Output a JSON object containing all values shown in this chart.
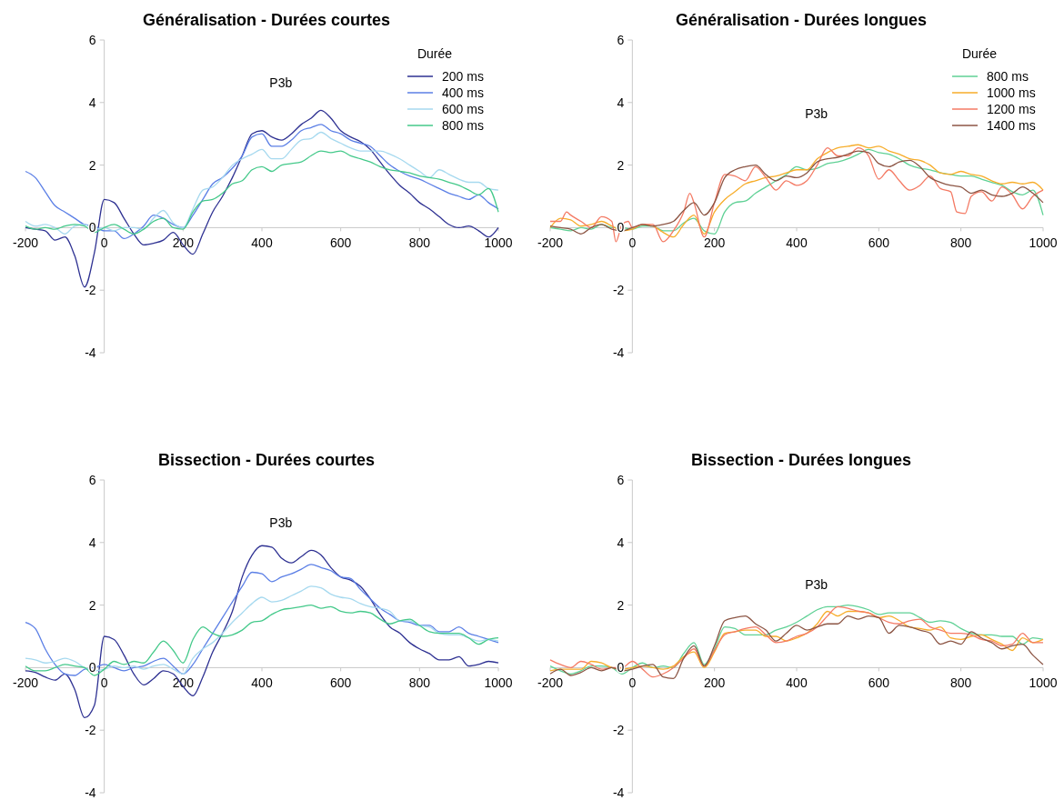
{
  "chart_data": [
    {
      "type": "line",
      "title": "Généralisation - Durées courtes",
      "legend_title": "Durée",
      "legend": "top right",
      "grid": false,
      "xlim": [
        -200,
        1000
      ],
      "ylim": [
        -4,
        6
      ],
      "xticks": [
        -200,
        0,
        200,
        400,
        600,
        800,
        1000
      ],
      "yticks": [
        -4,
        -2,
        0,
        2,
        4,
        6
      ],
      "annotations": [
        "P3b"
      ],
      "x": [
        -200,
        -175,
        -150,
        -125,
        -100,
        -75,
        -50,
        -25,
        0,
        25,
        50,
        75,
        100,
        125,
        150,
        175,
        200,
        225,
        250,
        275,
        300,
        325,
        350,
        375,
        400,
        425,
        450,
        475,
        500,
        525,
        550,
        575,
        600,
        625,
        650,
        675,
        700,
        725,
        750,
        775,
        800,
        825,
        850,
        875,
        900,
        925,
        950,
        975,
        1000
      ],
      "series": [
        {
          "name": "200 ms",
          "color": "#2e3192",
          "values": [
            0.0,
            -0.05,
            -0.1,
            -0.4,
            -0.3,
            -0.9,
            -1.9,
            -0.8,
            0.9,
            0.8,
            0.3,
            -0.2,
            -0.55,
            -0.5,
            -0.4,
            -0.15,
            -0.55,
            -0.85,
            -0.2,
            0.5,
            1.0,
            1.6,
            2.3,
            3.0,
            3.1,
            2.9,
            2.8,
            3.0,
            3.3,
            3.5,
            3.75,
            3.5,
            3.1,
            2.9,
            2.75,
            2.5,
            2.1,
            1.7,
            1.35,
            1.1,
            0.8,
            0.6,
            0.35,
            0.1,
            0.0,
            0.05,
            -0.1,
            -0.3,
            0.0
          ]
        },
        {
          "name": "400 ms",
          "color": "#5b7fe6",
          "values": [
            1.8,
            1.6,
            1.15,
            0.7,
            0.5,
            0.3,
            0.1,
            0.05,
            -0.1,
            -0.1,
            -0.35,
            -0.2,
            0.05,
            0.4,
            0.3,
            0.1,
            0.0,
            0.4,
            0.9,
            1.4,
            1.6,
            1.9,
            2.3,
            2.9,
            3.0,
            2.6,
            2.6,
            2.8,
            3.1,
            3.2,
            3.3,
            3.1,
            3.0,
            2.8,
            2.7,
            2.6,
            2.3,
            2.0,
            1.8,
            1.65,
            1.55,
            1.4,
            1.25,
            1.1,
            1.0,
            0.9,
            1.05,
            0.8,
            0.6
          ]
        },
        {
          "name": "600 ms",
          "color": "#a6d9ef",
          "values": [
            0.2,
            0.05,
            0.1,
            0.0,
            -0.2,
            0.05,
            0.1,
            -0.05,
            0.0,
            -0.1,
            0.0,
            0.0,
            -0.05,
            0.3,
            0.55,
            0.15,
            0.0,
            0.6,
            1.2,
            1.3,
            1.6,
            2.0,
            2.2,
            2.35,
            2.5,
            2.2,
            2.2,
            2.5,
            2.8,
            2.85,
            3.05,
            2.85,
            2.7,
            2.55,
            2.45,
            2.45,
            2.45,
            2.35,
            2.2,
            2.0,
            1.8,
            1.6,
            1.85,
            1.7,
            1.55,
            1.45,
            1.45,
            1.25,
            1.2
          ]
        },
        {
          "name": "800 ms",
          "color": "#44c98a",
          "values": [
            0.05,
            -0.05,
            0.0,
            -0.05,
            0.05,
            0.1,
            0.05,
            -0.15,
            0.0,
            0.1,
            -0.05,
            -0.2,
            -0.05,
            0.2,
            0.3,
            0.0,
            -0.05,
            0.5,
            0.85,
            0.9,
            1.1,
            1.4,
            1.5,
            1.85,
            1.95,
            1.8,
            2.0,
            2.05,
            2.1,
            2.3,
            2.45,
            2.4,
            2.45,
            2.3,
            2.2,
            2.1,
            1.95,
            1.85,
            1.8,
            1.75,
            1.65,
            1.6,
            1.55,
            1.45,
            1.35,
            1.2,
            1.05,
            1.25,
            0.5
          ]
        }
      ]
    },
    {
      "type": "line",
      "title": "Généralisation - Durées longues",
      "legend_title": "Durée",
      "legend": "top right",
      "grid": false,
      "xlim": [
        -200,
        1000
      ],
      "ylim": [
        -4,
        6
      ],
      "xticks": [
        -200,
        0,
        200,
        400,
        600,
        800,
        1000
      ],
      "yticks": [
        -4,
        -2,
        0,
        2,
        4,
        6
      ],
      "annotations": [
        "P3b"
      ],
      "x": [
        -200,
        -175,
        -150,
        -125,
        -100,
        -75,
        -50,
        -25,
        0,
        25,
        50,
        75,
        100,
        125,
        150,
        175,
        200,
        225,
        250,
        275,
        300,
        325,
        350,
        375,
        400,
        425,
        450,
        475,
        500,
        525,
        550,
        575,
        600,
        625,
        650,
        675,
        700,
        725,
        750,
        775,
        800,
        825,
        850,
        875,
        900,
        925,
        950,
        975,
        1000
      ],
      "series": [
        {
          "name": "800 ms",
          "color": "#5fd195",
          "values": [
            0.0,
            -0.05,
            -0.1,
            0.0,
            -0.05,
            0.1,
            0.0,
            0.0,
            -0.05,
            0.05,
            0.05,
            -0.1,
            -0.1,
            0.15,
            0.3,
            -0.1,
            -0.2,
            0.5,
            0.8,
            0.85,
            1.1,
            1.3,
            1.5,
            1.7,
            1.95,
            1.85,
            1.9,
            2.05,
            2.1,
            2.2,
            2.35,
            2.5,
            2.4,
            2.35,
            2.2,
            2.0,
            1.9,
            1.85,
            1.75,
            1.7,
            1.65,
            1.65,
            1.55,
            1.45,
            1.35,
            1.15,
            1.05,
            1.2,
            0.4
          ]
        },
        {
          "name": "1000 ms",
          "color": "#f7ad2a",
          "values": [
            0.0,
            0.3,
            0.25,
            0.05,
            0.1,
            0.2,
            0.05,
            -0.1,
            -0.05,
            0.1,
            0.05,
            -0.15,
            -0.3,
            0.1,
            0.4,
            -0.2,
            0.5,
            0.9,
            1.15,
            1.4,
            1.5,
            1.6,
            1.65,
            1.75,
            1.85,
            1.85,
            2.2,
            2.4,
            2.55,
            2.6,
            2.65,
            2.55,
            2.6,
            2.45,
            2.35,
            2.2,
            2.15,
            2.0,
            1.75,
            1.7,
            1.8,
            1.7,
            1.65,
            1.5,
            1.4,
            1.45,
            1.4,
            1.45,
            1.2
          ]
        },
        {
          "name": "1200 ms",
          "color": "#f47a64",
          "x": [
            -200,
            -175,
            -160,
            -150,
            -125,
            -100,
            -75,
            -50,
            -40,
            -25,
            -10,
            0,
            25,
            50,
            75,
            100,
            125,
            140,
            150,
            175,
            200,
            225,
            250,
            275,
            300,
            325,
            350,
            375,
            400,
            425,
            450,
            475,
            500,
            525,
            550,
            575,
            600,
            625,
            650,
            675,
            700,
            725,
            750,
            775,
            790,
            810,
            825,
            850,
            875,
            900,
            925,
            950,
            975,
            1000
          ],
          "values": [
            0.2,
            0.2,
            0.5,
            0.4,
            0.2,
            0.0,
            0.35,
            0.2,
            -0.45,
            0.1,
            0.2,
            0.0,
            0.1,
            0.1,
            -0.45,
            -0.1,
            0.5,
            1.1,
            0.8,
            -0.3,
            0.8,
            1.7,
            1.65,
            1.5,
            1.95,
            1.6,
            1.2,
            1.5,
            1.35,
            1.5,
            2.0,
            2.55,
            2.3,
            2.3,
            2.55,
            2.3,
            1.55,
            1.85,
            1.5,
            1.2,
            1.35,
            1.65,
            1.25,
            1.15,
            0.5,
            0.45,
            1.0,
            1.15,
            0.85,
            1.3,
            1.05,
            0.6,
            1.0,
            1.2
          ]
        },
        {
          "name": "1400 ms",
          "color": "#8c5544",
          "values": [
            0.05,
            0.0,
            -0.05,
            -0.2,
            0.0,
            0.1,
            -0.05,
            -0.1,
            0.0,
            0.1,
            0.05,
            0.1,
            0.2,
            0.55,
            0.8,
            0.4,
            0.8,
            1.6,
            1.85,
            1.95,
            2.0,
            1.7,
            1.5,
            1.65,
            1.6,
            1.75,
            2.1,
            2.2,
            2.25,
            2.35,
            2.45,
            2.4,
            2.05,
            1.95,
            2.1,
            2.15,
            1.95,
            1.6,
            1.45,
            1.35,
            1.3,
            1.1,
            1.2,
            1.05,
            1.0,
            1.1,
            1.3,
            1.1,
            0.8
          ]
        }
      ]
    },
    {
      "type": "line",
      "title": "Bissection - Durées courtes",
      "legend": false,
      "grid": false,
      "xlim": [
        -200,
        1000
      ],
      "ylim": [
        -4,
        6
      ],
      "xticks": [
        -200,
        0,
        200,
        400,
        600,
        800,
        1000
      ],
      "yticks": [
        -4,
        -2,
        0,
        2,
        4,
        6
      ],
      "annotations": [
        "P3b"
      ],
      "x": [
        -200,
        -175,
        -150,
        -125,
        -100,
        -75,
        -50,
        -25,
        0,
        25,
        50,
        75,
        100,
        125,
        150,
        175,
        200,
        225,
        250,
        275,
        300,
        325,
        350,
        375,
        400,
        425,
        450,
        475,
        500,
        525,
        550,
        575,
        600,
        625,
        650,
        675,
        700,
        725,
        750,
        775,
        800,
        825,
        850,
        875,
        900,
        925,
        950,
        975,
        1000
      ],
      "series": [
        {
          "color": "#2e3192",
          "values": [
            -0.1,
            -0.15,
            -0.3,
            -0.4,
            -0.2,
            -0.7,
            -1.6,
            -1.2,
            1.0,
            0.9,
            0.4,
            -0.2,
            -0.55,
            -0.35,
            -0.1,
            -0.2,
            -0.6,
            -0.9,
            -0.3,
            0.5,
            1.1,
            1.8,
            2.9,
            3.6,
            3.9,
            3.85,
            3.5,
            3.35,
            3.55,
            3.75,
            3.6,
            3.2,
            2.9,
            2.8,
            2.6,
            2.2,
            1.7,
            1.3,
            1.1,
            0.8,
            0.6,
            0.45,
            0.25,
            0.25,
            0.35,
            0.05,
            0.1,
            0.2,
            0.15
          ]
        },
        {
          "color": "#5b7fe6",
          "values": [
            1.45,
            1.25,
            0.6,
            0.1,
            -0.2,
            -0.25,
            -0.05,
            0.0,
            0.1,
            0.0,
            -0.1,
            0.0,
            0.05,
            0.2,
            0.3,
            0.05,
            -0.2,
            0.1,
            0.6,
            1.1,
            1.6,
            2.1,
            2.6,
            3.05,
            3.0,
            2.75,
            2.9,
            3.0,
            3.15,
            3.3,
            3.2,
            3.1,
            2.9,
            2.85,
            2.5,
            2.2,
            1.9,
            1.7,
            1.5,
            1.45,
            1.35,
            1.35,
            1.15,
            1.15,
            1.3,
            1.1,
            1.0,
            0.9,
            0.8
          ]
        },
        {
          "color": "#a6d9ef",
          "values": [
            0.3,
            0.25,
            0.15,
            0.2,
            0.3,
            0.2,
            0.0,
            -0.1,
            -0.05,
            0.05,
            0.0,
            0.05,
            -0.05,
            0.05,
            0.1,
            -0.05,
            -0.2,
            0.3,
            0.6,
            0.8,
            1.1,
            1.45,
            1.75,
            2.05,
            2.25,
            2.1,
            2.15,
            2.3,
            2.45,
            2.6,
            2.55,
            2.35,
            2.25,
            2.2,
            2.05,
            1.95,
            1.9,
            1.8,
            1.5,
            1.5,
            1.35,
            1.3,
            1.1,
            1.05,
            1.05,
            0.95,
            0.85,
            0.9,
            0.85
          ]
        },
        {
          "color": "#44c98a",
          "values": [
            0.05,
            -0.1,
            -0.1,
            0.0,
            0.1,
            0.05,
            0.0,
            -0.25,
            -0.05,
            0.2,
            0.1,
            0.2,
            0.15,
            0.5,
            0.85,
            0.55,
            0.15,
            0.9,
            1.3,
            1.1,
            1.0,
            1.05,
            1.2,
            1.45,
            1.5,
            1.7,
            1.85,
            1.9,
            1.95,
            2.0,
            1.9,
            1.95,
            1.8,
            1.75,
            1.8,
            1.75,
            1.55,
            1.4,
            1.5,
            1.55,
            1.35,
            1.15,
            1.1,
            1.1,
            1.1,
            0.95,
            0.75,
            0.9,
            0.95
          ]
        }
      ]
    },
    {
      "type": "line",
      "title": "Bissection - Durées longues",
      "legend": false,
      "grid": false,
      "xlim": [
        -200,
        1000
      ],
      "ylim": [
        -4,
        6
      ],
      "xticks": [
        -200,
        0,
        200,
        400,
        600,
        800,
        1000
      ],
      "yticks": [
        -4,
        -2,
        0,
        2,
        4,
        6
      ],
      "annotations": [
        "P3b"
      ],
      "x": [
        -200,
        -175,
        -150,
        -125,
        -100,
        -75,
        -50,
        -25,
        0,
        25,
        50,
        75,
        100,
        125,
        150,
        175,
        200,
        225,
        250,
        275,
        300,
        325,
        350,
        375,
        400,
        425,
        450,
        475,
        500,
        525,
        550,
        575,
        600,
        625,
        650,
        675,
        700,
        725,
        750,
        775,
        800,
        825,
        850,
        875,
        900,
        925,
        950,
        975,
        1000
      ],
      "series": [
        {
          "color": "#5fd195",
          "values": [
            0.05,
            -0.1,
            -0.2,
            -0.1,
            0.05,
            0.05,
            0.0,
            -0.2,
            0.0,
            0.15,
            0.0,
            0.05,
            0.0,
            0.45,
            0.8,
            0.1,
            0.6,
            1.3,
            1.25,
            1.05,
            1.05,
            1.05,
            1.2,
            1.3,
            1.45,
            1.65,
            1.85,
            1.95,
            1.95,
            2.0,
            1.95,
            1.85,
            1.7,
            1.75,
            1.75,
            1.75,
            1.6,
            1.45,
            1.5,
            1.45,
            1.25,
            1.1,
            1.05,
            1.05,
            1.0,
            1.0,
            0.75,
            0.95,
            0.9
          ]
        },
        {
          "color": "#f7ad2a",
          "values": [
            -0.1,
            -0.05,
            -0.05,
            -0.05,
            0.2,
            0.15,
            0.0,
            -0.05,
            0.0,
            0.05,
            0.0,
            -0.05,
            0.05,
            0.35,
            0.5,
            0.0,
            0.5,
            1.1,
            1.15,
            1.2,
            1.2,
            1.0,
            1.0,
            0.85,
            0.95,
            1.1,
            1.4,
            1.8,
            1.65,
            1.8,
            1.8,
            1.75,
            1.6,
            1.65,
            1.5,
            1.3,
            1.25,
            1.2,
            1.3,
            0.95,
            0.9,
            1.0,
            1.05,
            0.9,
            0.75,
            0.55,
            0.95,
            0.8,
            0.9
          ]
        },
        {
          "color": "#f47a64",
          "values": [
            0.25,
            0.1,
            0.0,
            0.2,
            0.1,
            -0.05,
            0.0,
            0.0,
            0.2,
            -0.05,
            -0.3,
            -0.2,
            0.0,
            0.3,
            0.6,
            0.05,
            0.55,
            1.05,
            1.15,
            1.25,
            1.3,
            1.05,
            0.8,
            0.85,
            1.0,
            1.1,
            1.3,
            1.65,
            1.95,
            1.9,
            1.8,
            1.75,
            1.6,
            1.45,
            1.4,
            1.5,
            1.55,
            1.3,
            1.2,
            1.1,
            1.1,
            1.05,
            0.9,
            0.85,
            0.7,
            0.75,
            1.1,
            0.8,
            0.8
          ]
        },
        {
          "color": "#8c5544",
          "values": [
            -0.2,
            -0.05,
            -0.25,
            -0.15,
            0.0,
            -0.1,
            0.0,
            -0.1,
            -0.05,
            0.05,
            0.1,
            -0.3,
            -0.35,
            0.3,
            0.7,
            0.05,
            0.7,
            1.5,
            1.6,
            1.65,
            1.4,
            1.2,
            0.85,
            1.1,
            1.35,
            1.2,
            1.3,
            1.4,
            1.4,
            1.65,
            1.55,
            1.65,
            1.6,
            1.1,
            1.35,
            1.3,
            1.2,
            1.1,
            0.75,
            0.85,
            0.75,
            1.15,
            0.95,
            0.8,
            0.6,
            0.7,
            0.75,
            0.4,
            0.1
          ]
        }
      ]
    }
  ]
}
